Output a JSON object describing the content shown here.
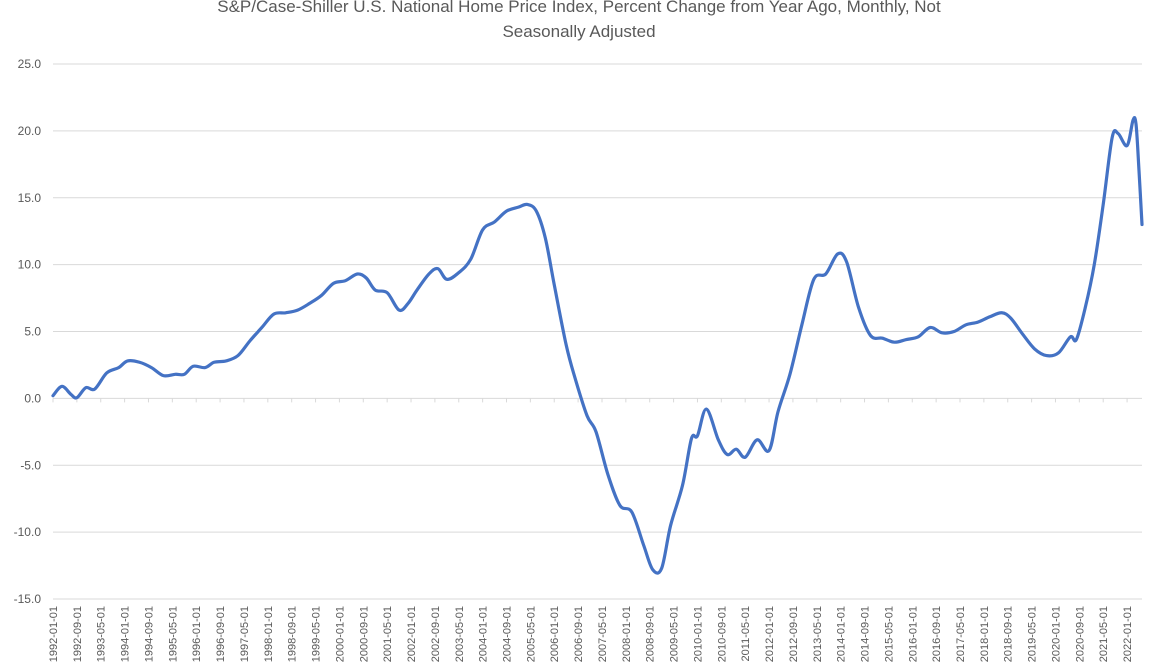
{
  "chart_data": {
    "type": "line",
    "title_lines": [
      "S&P/Case-Shiller U.S. National Home Price Index, Percent Change from Year Ago, Monthly, Not",
      "Seasonally Adjusted"
    ],
    "xlabel": "",
    "ylabel": "",
    "ylim": [
      -15,
      25
    ],
    "yticks": [
      "-15.0",
      "-10.0",
      "-5.0",
      "0.0",
      "5.0",
      "10.0",
      "15.0",
      "20.0",
      "25.0"
    ],
    "grid": true,
    "legend": "none",
    "line_color": "#4472c4",
    "x_start": "1992-01",
    "x_end": "2022-06",
    "x_ticks": [
      "1992-01-01",
      "1992-09-01",
      "1993-05-01",
      "1994-01-01",
      "1994-09-01",
      "1995-05-01",
      "1996-01-01",
      "1996-09-01",
      "1997-05-01",
      "1998-01-01",
      "1998-09-01",
      "1999-05-01",
      "2000-01-01",
      "2000-09-01",
      "2001-05-01",
      "2002-01-01",
      "2002-09-01",
      "2003-05-01",
      "2004-01-01",
      "2004-09-01",
      "2005-05-01",
      "2006-01-01",
      "2006-09-01",
      "2007-05-01",
      "2008-01-01",
      "2008-09-01",
      "2009-05-01",
      "2010-01-01",
      "2010-09-01",
      "2011-05-01",
      "2012-01-01",
      "2012-09-01",
      "2013-05-01",
      "2014-01-01",
      "2014-09-01",
      "2015-05-01",
      "2016-01-01",
      "2016-09-01",
      "2017-05-01",
      "2018-01-01",
      "2018-09-01",
      "2019-05-01",
      "2020-01-01",
      "2020-09-01",
      "2021-05-01",
      "2022-01-01"
    ],
    "series": [
      {
        "values": [
          [
            "1992-01",
            0.2
          ],
          [
            "1992-04",
            0.9
          ],
          [
            "1992-07",
            0.3
          ],
          [
            "1992-09",
            0.05
          ],
          [
            "1992-12",
            0.8
          ],
          [
            "1993-03",
            0.7
          ],
          [
            "1993-07",
            1.9
          ],
          [
            "1993-11",
            2.3
          ],
          [
            "1994-02",
            2.8
          ],
          [
            "1994-06",
            2.7
          ],
          [
            "1994-10",
            2.3
          ],
          [
            "1995-02",
            1.7
          ],
          [
            "1995-06",
            1.8
          ],
          [
            "1995-09",
            1.8
          ],
          [
            "1995-12",
            2.4
          ],
          [
            "1996-04",
            2.3
          ],
          [
            "1996-07",
            2.7
          ],
          [
            "1996-11",
            2.8
          ],
          [
            "1997-03",
            3.2
          ],
          [
            "1997-07",
            4.3
          ],
          [
            "1997-11",
            5.3
          ],
          [
            "1998-03",
            6.3
          ],
          [
            "1998-07",
            6.4
          ],
          [
            "1998-11",
            6.6
          ],
          [
            "1999-03",
            7.1
          ],
          [
            "1999-07",
            7.7
          ],
          [
            "1999-11",
            8.6
          ],
          [
            "2000-03",
            8.8
          ],
          [
            "2000-07",
            9.3
          ],
          [
            "2000-10",
            9.0
          ],
          [
            "2001-01",
            8.1
          ],
          [
            "2001-05",
            7.9
          ],
          [
            "2001-09",
            6.6
          ],
          [
            "2001-12",
            7.1
          ],
          [
            "2002-03",
            8.1
          ],
          [
            "2002-07",
            9.3
          ],
          [
            "2002-10",
            9.7
          ],
          [
            "2003-01",
            8.9
          ],
          [
            "2003-05",
            9.4
          ],
          [
            "2003-09",
            10.4
          ],
          [
            "2004-01",
            12.6
          ],
          [
            "2004-05",
            13.2
          ],
          [
            "2004-09",
            14.0
          ],
          [
            "2005-01",
            14.3
          ],
          [
            "2005-04",
            14.5
          ],
          [
            "2005-07",
            14.0
          ],
          [
            "2005-10",
            12.0
          ],
          [
            "2006-01",
            8.5
          ],
          [
            "2006-05",
            4.0
          ],
          [
            "2006-08",
            1.5
          ],
          [
            "2006-12",
            -1.3
          ],
          [
            "2007-03",
            -2.5
          ],
          [
            "2007-07",
            -5.7
          ],
          [
            "2007-11",
            -8.0
          ],
          [
            "2008-03",
            -8.5
          ],
          [
            "2008-07",
            -11.0
          ],
          [
            "2008-10",
            -12.8
          ],
          [
            "2009-01",
            -12.7
          ],
          [
            "2009-04",
            -9.5
          ],
          [
            "2009-08",
            -6.5
          ],
          [
            "2009-11",
            -3.0
          ],
          [
            "2010-01",
            -2.8
          ],
          [
            "2010-04",
            -0.8
          ],
          [
            "2010-08",
            -3.1
          ],
          [
            "2010-11",
            -4.2
          ],
          [
            "2011-02",
            -3.8
          ],
          [
            "2011-05",
            -4.4
          ],
          [
            "2011-09",
            -3.1
          ],
          [
            "2012-01",
            -3.9
          ],
          [
            "2012-04",
            -1.0
          ],
          [
            "2012-08",
            1.8
          ],
          [
            "2012-12",
            5.5
          ],
          [
            "2013-04",
            8.9
          ],
          [
            "2013-08",
            9.3
          ],
          [
            "2013-12",
            10.8
          ],
          [
            "2014-03",
            10.2
          ],
          [
            "2014-07",
            6.8
          ],
          [
            "2014-11",
            4.7
          ],
          [
            "2015-03",
            4.5
          ],
          [
            "2015-07",
            4.2
          ],
          [
            "2015-11",
            4.4
          ],
          [
            "2016-03",
            4.6
          ],
          [
            "2016-07",
            5.3
          ],
          [
            "2016-11",
            4.9
          ],
          [
            "2017-03",
            5.0
          ],
          [
            "2017-07",
            5.5
          ],
          [
            "2017-11",
            5.7
          ],
          [
            "2018-03",
            6.1
          ],
          [
            "2018-07",
            6.4
          ],
          [
            "2018-10",
            6.0
          ],
          [
            "2019-02",
            4.8
          ],
          [
            "2019-06",
            3.7
          ],
          [
            "2019-10",
            3.2
          ],
          [
            "2020-02",
            3.4
          ],
          [
            "2020-06",
            4.6
          ],
          [
            "2020-08",
            4.4
          ],
          [
            "2020-11",
            6.8
          ],
          [
            "2021-02",
            10.0
          ],
          [
            "2021-05",
            14.5
          ],
          [
            "2021-08",
            19.5
          ],
          [
            "2021-10",
            19.8
          ],
          [
            "2022-01",
            18.9
          ],
          [
            "2022-03",
            20.8
          ],
          [
            "2022-04",
            20.5
          ],
          [
            "2022-05",
            17.0
          ],
          [
            "2022-06",
            13.0
          ]
        ]
      }
    ]
  }
}
